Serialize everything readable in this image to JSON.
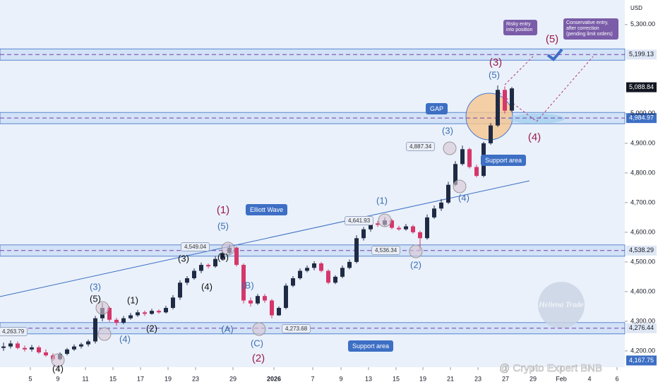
{
  "chart_data": {
    "type": "candlestick",
    "currency": "USD",
    "xlim": [
      -0.5,
      88
    ],
    "xticks": [
      {
        "value": 3.8,
        "label": "5"
      },
      {
        "value": 7.7,
        "label": "9"
      },
      {
        "value": 11.6,
        "label": "11"
      },
      {
        "value": 15.5,
        "label": "15"
      },
      {
        "value": 19.4,
        "label": "17"
      },
      {
        "value": 23.3,
        "label": "19"
      },
      {
        "value": 27.2,
        "label": "23"
      },
      {
        "value": 32.5,
        "label": "29"
      },
      {
        "value": 38.3,
        "label": "2026"
      },
      {
        "value": 43.8,
        "label": "7"
      },
      {
        "value": 47.8,
        "label": "9"
      },
      {
        "value": 51.7,
        "label": "13"
      },
      {
        "value": 55.6,
        "label": "15"
      },
      {
        "value": 59.4,
        "label": "19"
      },
      {
        "value": 63.3,
        "label": "21"
      },
      {
        "value": 67.2,
        "label": "23"
      },
      {
        "value": 71.1,
        "label": "27"
      },
      {
        "value": 75,
        "label": "29"
      },
      {
        "value": 79,
        "label": "Feb"
      },
      {
        "value": 83,
        "label": "4"
      },
      {
        "value": 86.9,
        "label": "6"
      }
    ],
    "ylim": [
      4145,
      5383
    ],
    "yticks": [
      {
        "value": 4200,
        "label": "4,200.00"
      },
      {
        "value": 4300,
        "label": "4,300.00"
      },
      {
        "value": 4400,
        "label": "4,400.00"
      },
      {
        "value": 4500,
        "label": "4,500.00"
      },
      {
        "value": 4600,
        "label": "4,600.00"
      },
      {
        "value": 4700,
        "label": "4,700.00"
      },
      {
        "value": 4800,
        "label": "4,800.00"
      },
      {
        "value": 4900,
        "label": "4,900.00"
      },
      {
        "value": 5000,
        "label": "5,000.00"
      },
      {
        "value": 5300,
        "label": "5,300.00"
      }
    ],
    "up_color": "#1f2a44",
    "down_color": "#d6366a",
    "open": [
      4210,
      4215,
      4225,
      4210,
      4205,
      4212,
      4195,
      4185,
      4172,
      4190,
      4205,
      4215,
      4222,
      4232,
      4310,
      4345,
      4305,
      4295,
      4310,
      4320,
      4330,
      4325,
      4335,
      4330,
      4345,
      4380,
      4430,
      4445,
      4470,
      4490,
      4485,
      4510,
      4530,
      4548,
      4490,
      4370,
      4360,
      4385,
      4370,
      4320,
      4345,
      4420,
      4445,
      4470,
      4480,
      4495,
      4470,
      4430,
      4450,
      4480,
      4500,
      4580,
      4610,
      4630,
      4625,
      4640,
      4615,
      4610,
      4620,
      4600,
      4580,
      4650,
      4680,
      4700,
      4760,
      4830,
      4880,
      4820,
      4790,
      4900,
      4960,
      5080,
      5010
    ],
    "high": [
      4228,
      4235,
      4232,
      4218,
      4220,
      4218,
      4205,
      4192,
      4195,
      4210,
      4222,
      4228,
      4238,
      4318,
      4362,
      4350,
      4312,
      4318,
      4328,
      4338,
      4336,
      4342,
      4340,
      4352,
      4388,
      4438,
      4452,
      4478,
      4498,
      4495,
      4520,
      4540,
      4560,
      4552,
      4495,
      4380,
      4392,
      4392,
      4375,
      4350,
      4428,
      4452,
      4478,
      4488,
      4502,
      4500,
      4475,
      4455,
      4488,
      4508,
      4590,
      4618,
      4640,
      4638,
      4650,
      4645,
      4622,
      4628,
      4625,
      4605,
      4660,
      4690,
      4712,
      4770,
      4840,
      4892,
      4885,
      4828,
      4905,
      4968,
      5095,
      5092,
      5090
    ],
    "low": [
      4200,
      4208,
      4205,
      4198,
      4198,
      4190,
      4180,
      4165,
      4168,
      4185,
      4200,
      4208,
      4215,
      4225,
      4300,
      4298,
      4285,
      4290,
      4305,
      4315,
      4318,
      4322,
      4325,
      4326,
      4340,
      4372,
      4422,
      4440,
      4462,
      4478,
      4480,
      4505,
      4525,
      4485,
      4360,
      4350,
      4355,
      4362,
      4310,
      4318,
      4340,
      4415,
      4440,
      4465,
      4472,
      4465,
      4425,
      4425,
      4445,
      4475,
      4495,
      4572,
      4602,
      4618,
      4618,
      4610,
      4605,
      4605,
      4595,
      4540,
      4575,
      4645,
      4672,
      4695,
      4755,
      4825,
      4815,
      4785,
      4785,
      4895,
      4955,
      5000,
      5005
    ],
    "close": [
      4215,
      4225,
      4210,
      4205,
      4212,
      4195,
      4185,
      4172,
      4190,
      4205,
      4215,
      4222,
      4232,
      4310,
      4345,
      4305,
      4295,
      4310,
      4320,
      4330,
      4325,
      4335,
      4330,
      4345,
      4380,
      4430,
      4445,
      4470,
      4490,
      4485,
      4510,
      4530,
      4548,
      4490,
      4370,
      4360,
      4385,
      4370,
      4320,
      4345,
      4420,
      4445,
      4470,
      4480,
      4495,
      4470,
      4430,
      4450,
      4480,
      4500,
      4580,
      4610,
      4630,
      4625,
      4640,
      4615,
      4610,
      4620,
      4600,
      4580,
      4650,
      4680,
      4700,
      4760,
      4830,
      4880,
      4820,
      4790,
      4900,
      4960,
      5080,
      5010,
      5085
    ],
    "levels": [
      {
        "value": 5199.13,
        "label": "5,199.13"
      },
      {
        "value": 4984.97,
        "label": "4,984.97"
      },
      {
        "value": 4538.29,
        "label": "4,538.29"
      },
      {
        "value": 4276.44,
        "label": "4,276.44"
      }
    ],
    "last_price": {
      "value": 5088.84,
      "label": "5,088.84"
    },
    "low_price": {
      "value": 4167.75,
      "label": "4,167.75"
    },
    "wave_labels": [
      "(3)",
      "(5)",
      "(1)",
      "(2)",
      "(4)",
      "(4)",
      "(3)",
      "(4)",
      "(5)",
      "(5)",
      "(1)",
      "(B)",
      "(A)",
      "(C)",
      "(2)",
      "(1)",
      "(2)",
      "(3)",
      "(4)",
      "(5)",
      "(3)",
      "(4)",
      "(5)"
    ],
    "callouts": [
      "Elliott Wave",
      "GAP",
      "Support area",
      "Support area"
    ],
    "entries": [
      "Risky entry into position",
      "Conservative entry, after correction (pending limit orders)"
    ],
    "price_notes": [
      "4,549.04",
      "4,641.93",
      "4,887.34",
      "4,536.34",
      "4,273.68",
      "4,263.79"
    ],
    "watermark": "Hellena Trade",
    "credit": "@ Crypto Expert BNB"
  }
}
